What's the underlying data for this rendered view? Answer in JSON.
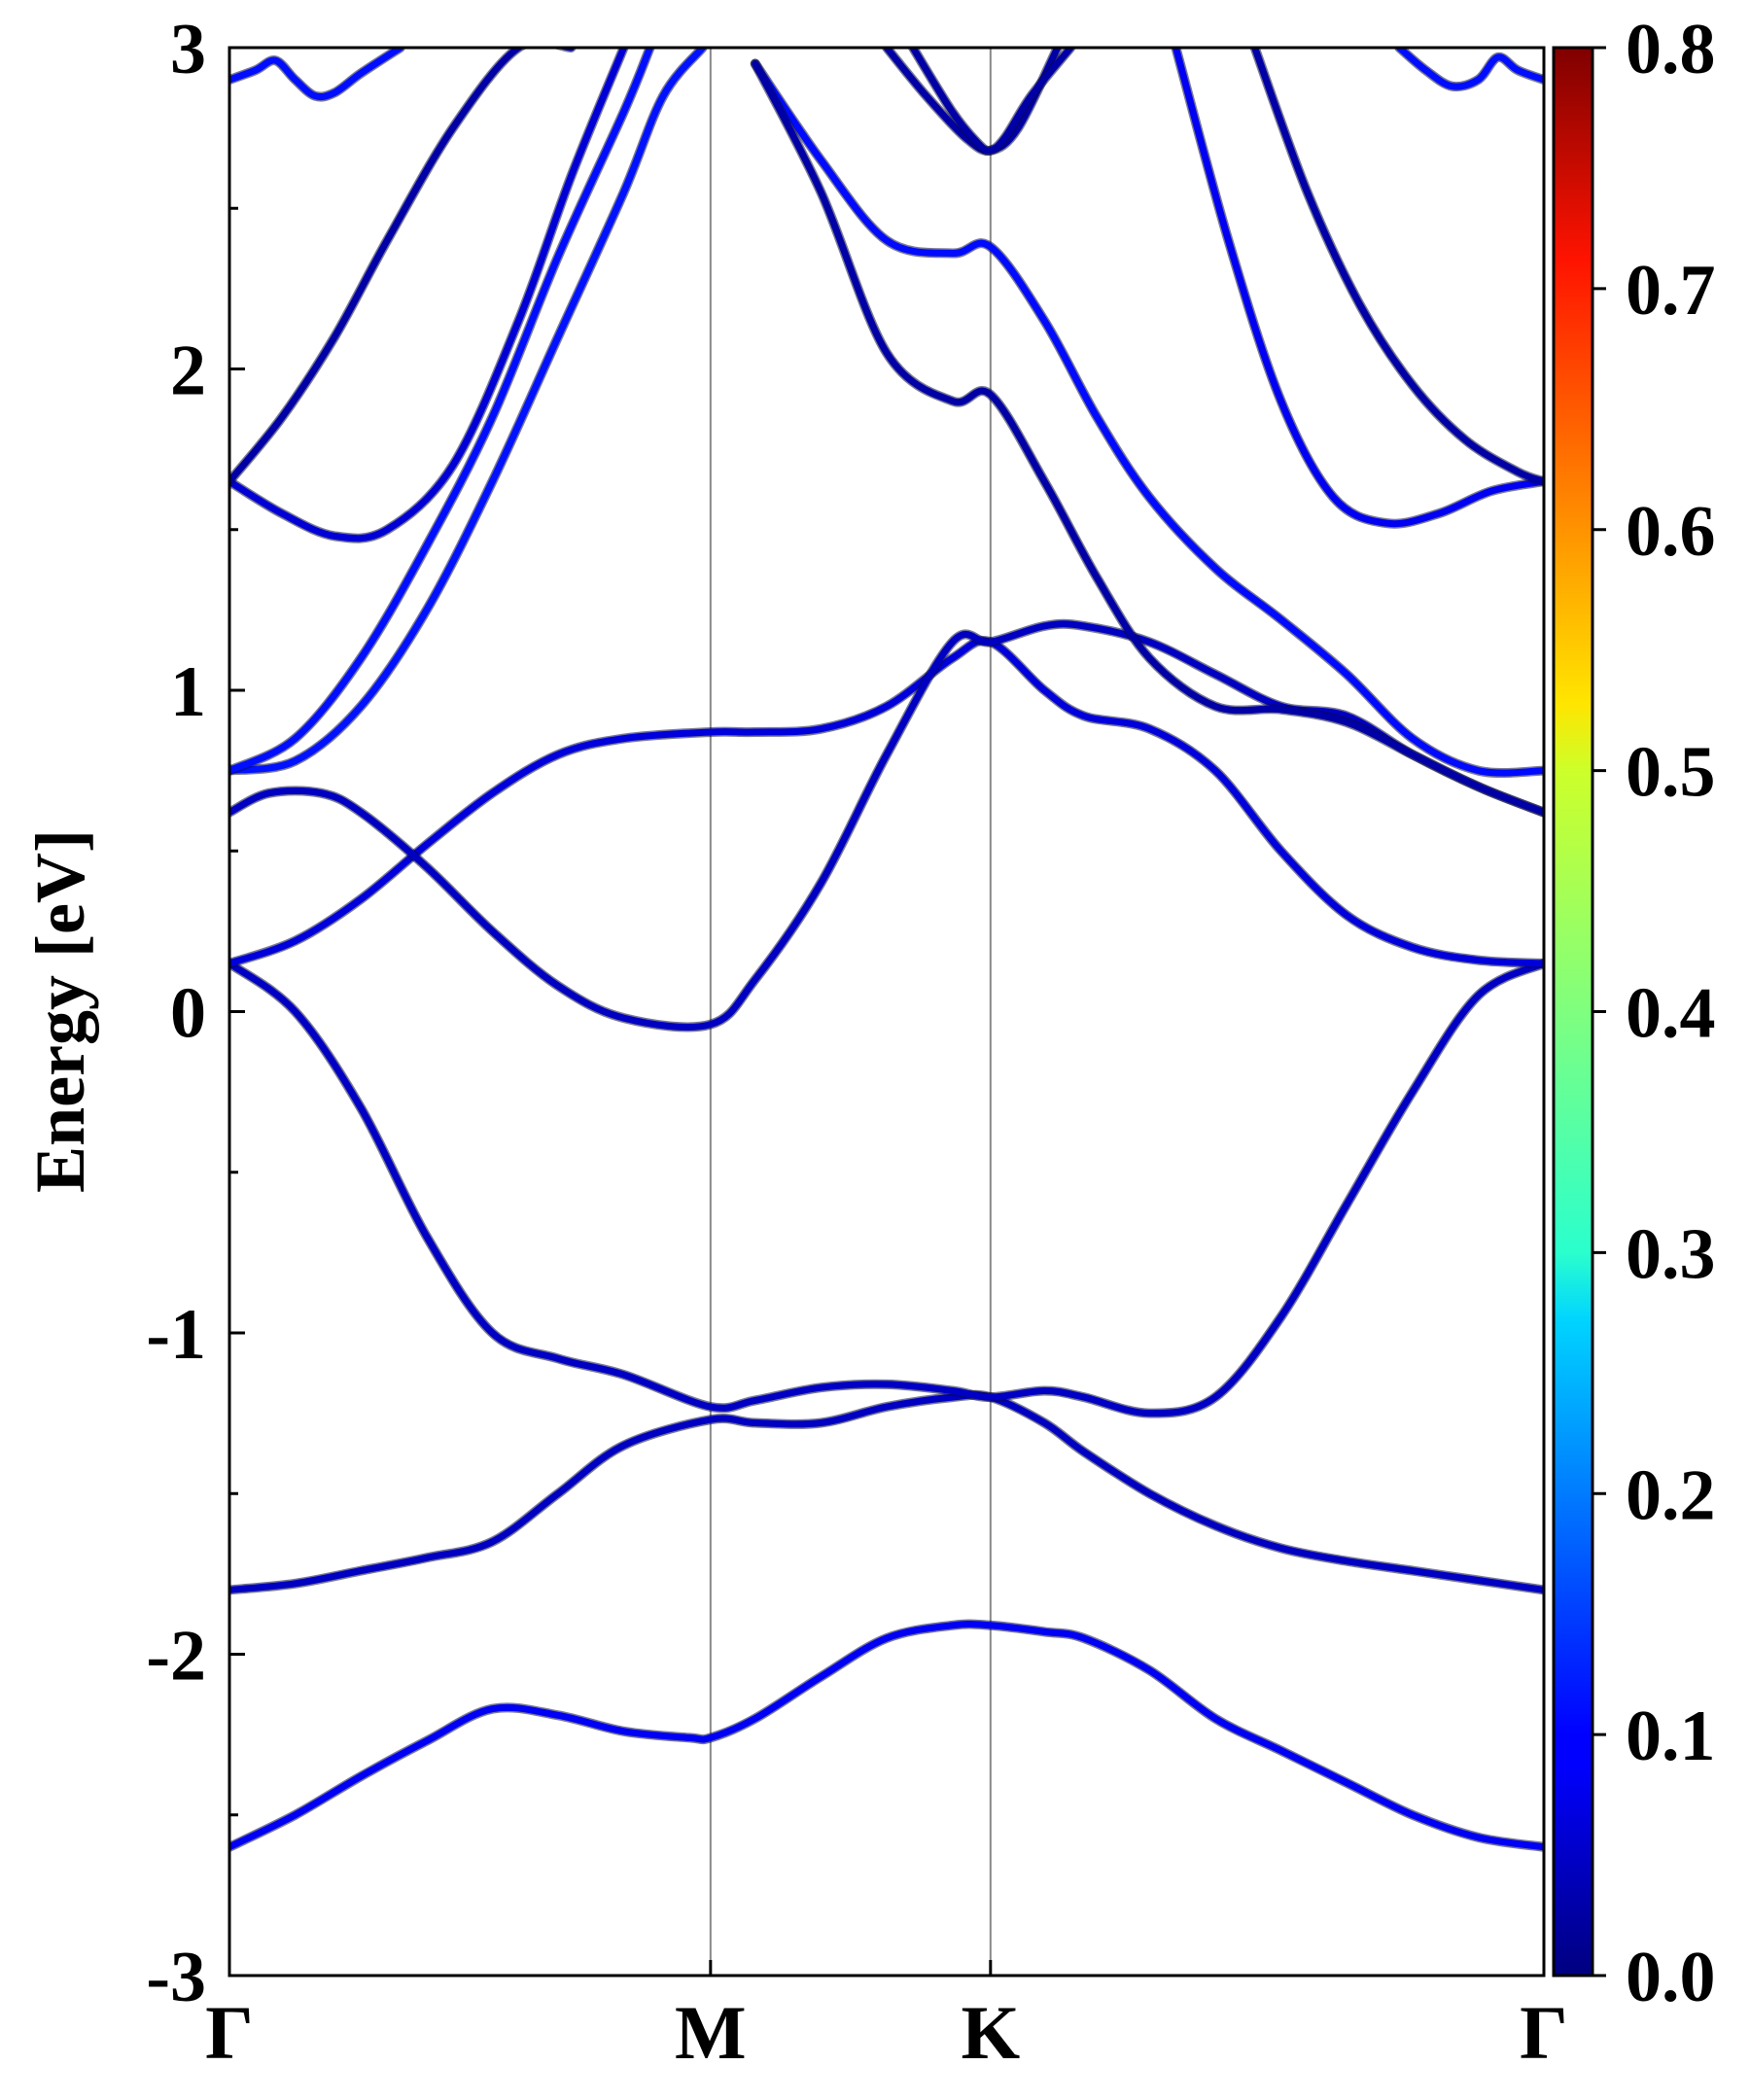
{
  "chart_data": {
    "type": "line",
    "title": "",
    "ylabel": "Energy [eV]",
    "xlabel": "",
    "ylim": [
      -3,
      3
    ],
    "yticks": [
      "-3",
      "-2",
      "-1",
      "0",
      "1",
      "2",
      "3"
    ],
    "kpath": [
      {
        "label": "Γ",
        "x": 0.0
      },
      {
        "label": "M",
        "x": 0.366
      },
      {
        "label": "K",
        "x": 0.579
      },
      {
        "label": "Γ",
        "x": 1.0
      }
    ],
    "grid": false,
    "colorbar": {
      "colormap": "jet",
      "range": [
        0.0,
        0.8
      ],
      "tick_labels": [
        "0.0",
        "0.1",
        "0.2",
        "0.3",
        "0.4",
        "0.5",
        "0.6",
        "0.7",
        "0.8"
      ]
    },
    "series": [
      {
        "x": [
          0,
          0.05,
          0.1,
          0.15,
          0.2,
          0.25,
          0.3,
          0.35,
          0.366,
          0.4,
          0.45,
          0.5,
          0.55,
          0.579,
          0.62,
          0.65,
          0.7,
          0.75,
          0.8,
          0.85,
          0.9,
          0.95,
          1.0
        ],
        "y": [
          -2.6,
          -2.5,
          -2.38,
          -2.27,
          -2.17,
          -2.19,
          -2.24,
          -2.26,
          -2.26,
          -2.2,
          -2.07,
          -1.95,
          -1.91,
          -1.91,
          -1.93,
          -1.95,
          -2.05,
          -2.2,
          -2.3,
          -2.4,
          -2.5,
          -2.57,
          -2.6
        ],
        "weight": [
          0.2,
          0.16,
          0.12,
          0.09,
          0.07,
          0.06,
          0.05,
          0.04,
          0.04,
          0.04,
          0.03,
          0.03,
          0.03,
          0.03,
          0.04,
          0.05,
          0.08,
          0.11,
          0.13,
          0.15,
          0.17,
          0.19,
          0.2
        ]
      },
      {
        "x": [
          0,
          0.05,
          0.1,
          0.15,
          0.2,
          0.25,
          0.3,
          0.366,
          0.4,
          0.45,
          0.5,
          0.55,
          0.579,
          0.62,
          0.65,
          0.7,
          0.75,
          0.8,
          0.85,
          0.9,
          0.95,
          1.0
        ],
        "y": [
          -1.8,
          -1.78,
          -1.74,
          -1.7,
          -1.65,
          -1.5,
          -1.35,
          -1.27,
          -1.28,
          -1.28,
          -1.23,
          -1.2,
          -1.2,
          -1.28,
          -1.37,
          -1.5,
          -1.6,
          -1.67,
          -1.71,
          -1.74,
          -1.77,
          -1.8
        ],
        "weight": [
          0.1,
          0.09,
          0.08,
          0.07,
          0.06,
          0.05,
          0.04,
          0.03,
          0.03,
          0.03,
          0.03,
          0.03,
          0.03,
          0.02,
          0.02,
          0.02,
          0.03,
          0.05,
          0.07,
          0.08,
          0.09,
          0.1
        ]
      },
      {
        "x": [
          0,
          0.05,
          0.1,
          0.15,
          0.2,
          0.25,
          0.3,
          0.366,
          0.4,
          0.45,
          0.5,
          0.55,
          0.579,
          0.62,
          0.65,
          0.7,
          0.75,
          0.8,
          0.85,
          0.9,
          0.95,
          1.0
        ],
        "y": [
          0.15,
          0.0,
          -0.3,
          -0.7,
          -1.0,
          -1.08,
          -1.13,
          -1.23,
          -1.21,
          -1.17,
          -1.16,
          -1.18,
          -1.2,
          -1.18,
          -1.2,
          -1.25,
          -1.2,
          -0.95,
          -0.6,
          -0.25,
          0.05,
          0.15
        ],
        "weight": [
          0.04,
          0.04,
          0.04,
          0.05,
          0.05,
          0.06,
          0.06,
          0.07,
          0.07,
          0.08,
          0.08,
          0.07,
          0.06,
          0.06,
          0.05,
          0.05,
          0.05,
          0.05,
          0.05,
          0.04,
          0.04,
          0.04
        ]
      },
      {
        "x": [
          0,
          0.05,
          0.1,
          0.15,
          0.2,
          0.25,
          0.3,
          0.366,
          0.4,
          0.45,
          0.5,
          0.55,
          0.579,
          0.62,
          0.65,
          0.7,
          0.75,
          0.8,
          0.85,
          0.9,
          0.95,
          1.0
        ],
        "y": [
          0.15,
          0.22,
          0.35,
          0.52,
          0.68,
          0.8,
          0.85,
          0.87,
          0.87,
          0.88,
          0.95,
          1.1,
          1.15,
          1.0,
          0.92,
          0.88,
          0.75,
          0.5,
          0.3,
          0.2,
          0.16,
          0.15
        ],
        "weight": [
          0.03,
          0.04,
          0.05,
          0.07,
          0.08,
          0.09,
          0.1,
          0.1,
          0.1,
          0.11,
          0.11,
          0.11,
          0.1,
          0.1,
          0.1,
          0.08,
          0.06,
          0.04,
          0.03,
          0.03,
          0.03,
          0.03
        ]
      },
      {
        "x": [
          0,
          0.03,
          0.07,
          0.1,
          0.15,
          0.2,
          0.25,
          0.3,
          0.366,
          0.4,
          0.45,
          0.5,
          0.55,
          0.579,
          0.62,
          0.65,
          0.7,
          0.75,
          0.8,
          0.85,
          0.9,
          0.95,
          1.0
        ],
        "y": [
          0.62,
          0.68,
          0.68,
          0.62,
          0.45,
          0.25,
          0.08,
          -0.02,
          -0.04,
          0.1,
          0.4,
          0.8,
          1.15,
          1.15,
          1.2,
          1.2,
          1.15,
          1.05,
          0.95,
          0.92,
          0.8,
          0.7,
          0.62
        ],
        "weight": [
          0.03,
          0.03,
          0.03,
          0.03,
          0.03,
          0.03,
          0.02,
          0.02,
          0.02,
          0.04,
          0.07,
          0.1,
          0.11,
          0.11,
          0.1,
          0.09,
          0.08,
          0.06,
          0.05,
          0.05,
          0.04,
          0.03,
          0.03
        ]
      },
      {
        "x": [
          0,
          0.05,
          0.1,
          0.15,
          0.2,
          0.25,
          0.3,
          0.33,
          0.36
        ],
        "y": [
          0.75,
          0.78,
          0.95,
          1.25,
          1.65,
          2.1,
          2.55,
          2.85,
          3.0
        ],
        "weight": [
          0.1,
          0.1,
          0.11,
          0.12,
          0.12,
          0.12,
          0.12,
          0.12,
          0.12
        ]
      },
      {
        "x": [
          0,
          0.05,
          0.1,
          0.15,
          0.2,
          0.25,
          0.3,
          0.32
        ],
        "y": [
          0.75,
          0.85,
          1.1,
          1.45,
          1.85,
          2.35,
          2.8,
          3.0
        ],
        "weight": [
          0.1,
          0.1,
          0.11,
          0.11,
          0.11,
          0.12,
          0.12,
          0.12
        ]
      },
      {
        "x": [
          0,
          0.04,
          0.08,
          0.12,
          0.17,
          0.22,
          0.26,
          0.3
        ],
        "y": [
          1.65,
          1.55,
          1.48,
          1.5,
          1.7,
          2.15,
          2.6,
          3.0
        ],
        "weight": [
          0.04,
          0.04,
          0.04,
          0.05,
          0.07,
          0.09,
          0.1,
          0.11
        ]
      },
      {
        "x": [
          0,
          0.04,
          0.08,
          0.12,
          0.17,
          0.22,
          0.26
        ],
        "y": [
          1.65,
          1.85,
          2.1,
          2.4,
          2.75,
          3.0,
          3.0
        ],
        "weight": [
          0.03,
          0.03,
          0.03,
          0.03,
          0.03,
          0.03,
          0.03
        ]
      },
      {
        "x": [
          0.4,
          0.45,
          0.5,
          0.55,
          0.579,
          0.62,
          0.66,
          0.7,
          0.75,
          0.8,
          0.85,
          0.9,
          0.95,
          1.0
        ],
        "y": [
          2.95,
          2.65,
          2.4,
          2.36,
          2.38,
          2.15,
          1.85,
          1.6,
          1.38,
          1.22,
          1.05,
          0.85,
          0.75,
          0.75
        ],
        "weight": [
          0.12,
          0.12,
          0.12,
          0.11,
          0.11,
          0.11,
          0.11,
          0.11,
          0.1,
          0.1,
          0.1,
          0.1,
          0.1,
          0.1
        ]
      },
      {
        "x": [
          0.4,
          0.45,
          0.5,
          0.55,
          0.579,
          0.62,
          0.66,
          0.7,
          0.75,
          0.8,
          0.85,
          0.9,
          0.95,
          1.0
        ],
        "y": [
          2.95,
          2.55,
          2.05,
          1.9,
          1.92,
          1.65,
          1.35,
          1.1,
          0.95,
          0.94,
          0.9,
          0.8,
          0.7,
          0.62
        ],
        "weight": [
          0.03,
          0.03,
          0.03,
          0.03,
          0.03,
          0.03,
          0.03,
          0.03,
          0.03,
          0.03,
          0.03,
          0.03,
          0.03,
          0.03
        ]
      },
      {
        "x": [
          0.72,
          0.76,
          0.8,
          0.84,
          0.88,
          0.92,
          0.96,
          1.0
        ],
        "y": [
          3.0,
          2.4,
          1.9,
          1.6,
          1.52,
          1.55,
          1.62,
          1.65
        ],
        "weight": [
          0.11,
          0.11,
          0.11,
          0.11,
          0.1,
          0.08,
          0.06,
          0.04
        ]
      },
      {
        "x": [
          0.78,
          0.82,
          0.86,
          0.9,
          0.94,
          0.98,
          1.0
        ],
        "y": [
          3.0,
          2.55,
          2.2,
          1.95,
          1.78,
          1.68,
          1.65
        ],
        "weight": [
          0.03,
          0.03,
          0.03,
          0.03,
          0.03,
          0.03,
          0.03
        ]
      },
      {
        "x": [
          0.5,
          0.53,
          0.56,
          0.579,
          0.6,
          0.63
        ],
        "y": [
          3.0,
          2.85,
          2.72,
          2.68,
          2.75,
          3.0
        ],
        "weight": [
          0.03,
          0.03,
          0.03,
          0.03,
          0.03,
          0.03
        ]
      },
      {
        "x": [
          0.52,
          0.55,
          0.57,
          0.579,
          0.59,
          0.61,
          0.64
        ],
        "y": [
          3.0,
          2.8,
          2.7,
          2.68,
          2.72,
          2.85,
          3.0
        ],
        "weight": [
          0.03,
          0.03,
          0.03,
          0.03,
          0.03,
          0.03,
          0.03
        ]
      },
      {
        "x": [
          0,
          0.02,
          0.035,
          0.05,
          0.065,
          0.08,
          0.1,
          0.13
        ],
        "y": [
          2.9,
          2.93,
          2.96,
          2.9,
          2.85,
          2.86,
          2.92,
          3.0
        ],
        "weight": [
          0.11,
          0.11,
          0.11,
          0.11,
          0.11,
          0.11,
          0.11,
          0.11
        ]
      },
      {
        "x": [
          0.89,
          0.91,
          0.93,
          0.95,
          0.965,
          0.98,
          1.0
        ],
        "y": [
          3.0,
          2.93,
          2.88,
          2.9,
          2.97,
          2.93,
          2.9
        ],
        "weight": [
          0.11,
          0.11,
          0.11,
          0.11,
          0.11,
          0.11,
          0.11
        ]
      }
    ]
  }
}
